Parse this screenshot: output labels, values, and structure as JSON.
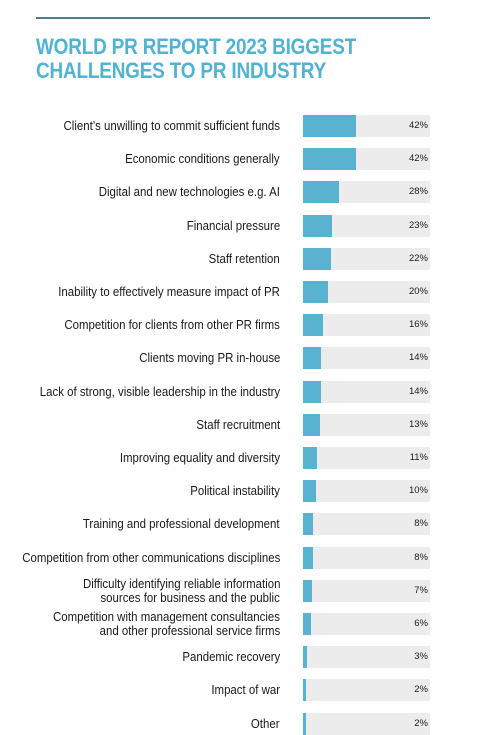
{
  "title_line1": "WORLD PR REPORT 2023 BIGGEST",
  "title_line2": "CHALLENGES TO PR INDUSTRY",
  "colors": {
    "title": "#4fb3d3",
    "bar": "#5ab2d1",
    "track": "#ececec",
    "rule": "#4a7f8f"
  },
  "chart_data": {
    "type": "bar",
    "orientation": "horizontal",
    "categories": [
      [
        "Client’s unwilling to commit sufficient funds"
      ],
      [
        "Economic conditions generally"
      ],
      [
        "Digital and new technologies e.g. AI"
      ],
      [
        "Financial pressure"
      ],
      [
        "Staff retention"
      ],
      [
        "Inability to effectively measure impact of PR"
      ],
      [
        "Competition for clients from other PR firms"
      ],
      [
        "Clients moving PR in-house"
      ],
      [
        "Lack of strong, visible leadership in the industry"
      ],
      [
        "Staff recruitment"
      ],
      [
        "Improving equality and diversity"
      ],
      [
        "Political instability"
      ],
      [
        "Training and professional development"
      ],
      [
        "Competition from other communications disciplines"
      ],
      [
        "Difficulty identifying reliable information",
        "sources for business and the public"
      ],
      [
        "Competition with management consultancies",
        "and other professional service firms"
      ],
      [
        "Pandemic recovery"
      ],
      [
        "Impact of war"
      ],
      [
        "Other"
      ]
    ],
    "values": [
      42,
      42,
      28,
      23,
      22,
      20,
      16,
      14,
      14,
      13,
      11,
      10,
      8,
      8,
      7,
      6,
      3,
      2,
      2
    ],
    "value_labels": [
      "42%",
      "42%",
      "28%",
      "23%",
      "22%",
      "20%",
      "16%",
      "14%",
      "14%",
      "13%",
      "11%",
      "10%",
      "8%",
      "8%",
      "7%",
      "6%",
      "3%",
      "2%",
      "2%"
    ],
    "xlim": [
      0,
      100
    ]
  }
}
